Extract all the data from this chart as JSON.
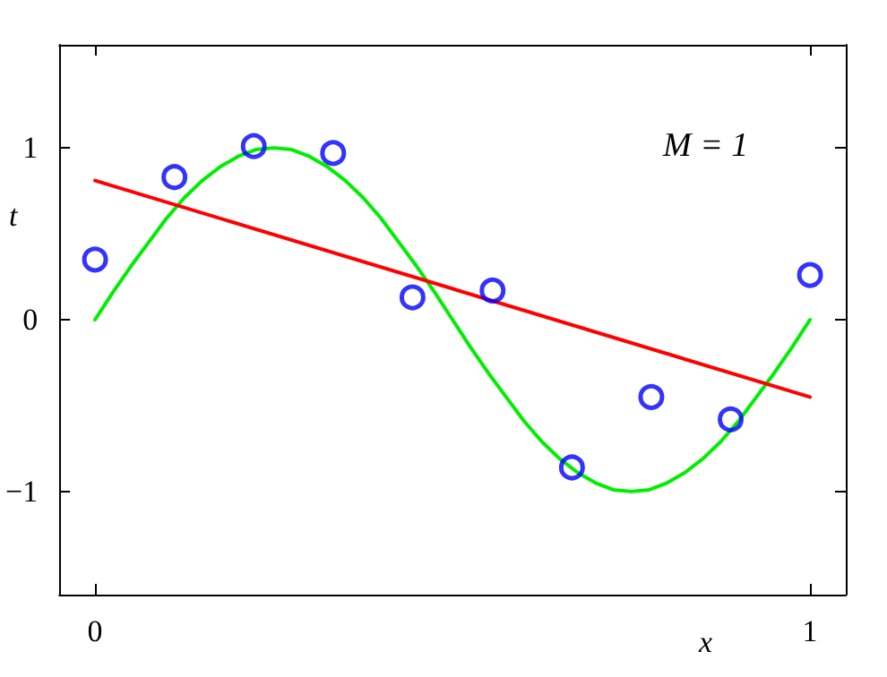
{
  "chart_data": {
    "type": "scatter",
    "xlabel": "x",
    "ylabel": "t",
    "annotations": [
      "M = 1"
    ],
    "xlim": [
      -0.05,
      1.05
    ],
    "ylim": [
      -1.6,
      1.6
    ],
    "xticks": [
      0,
      1
    ],
    "yticks": [
      {
        "value": -1,
        "label": "−1"
      },
      0,
      1
    ],
    "grid": false,
    "series": [
      {
        "type": "line",
        "color": "#00ee00",
        "marker": "none",
        "line_style": "solid",
        "x": [
          0,
          0.025,
          0.05,
          0.075,
          0.1,
          0.125,
          0.15,
          0.175,
          0.2,
          0.225,
          0.25,
          0.275,
          0.3,
          0.325,
          0.35,
          0.375,
          0.4,
          0.425,
          0.45,
          0.475,
          0.5,
          0.525,
          0.55,
          0.575,
          0.6,
          0.625,
          0.65,
          0.675,
          0.7,
          0.725,
          0.75,
          0.775,
          0.8,
          0.825,
          0.85,
          0.875,
          0.9,
          0.925,
          0.95,
          0.975,
          1
        ],
        "values": [
          0,
          0.16,
          0.31,
          0.45,
          0.59,
          0.71,
          0.81,
          0.89,
          0.95,
          0.99,
          1,
          0.99,
          0.95,
          0.89,
          0.81,
          0.71,
          0.59,
          0.45,
          0.31,
          0.16,
          0,
          -0.16,
          -0.31,
          -0.45,
          -0.59,
          -0.71,
          -0.81,
          -0.89,
          -0.95,
          -0.99,
          -1,
          -0.99,
          -0.95,
          -0.89,
          -0.81,
          -0.71,
          -0.59,
          -0.45,
          -0.31,
          -0.16,
          0
        ]
      },
      {
        "type": "line",
        "color": "#ff0000",
        "marker": "none",
        "line_style": "solid",
        "x": [
          0,
          1
        ],
        "values": [
          0.81,
          -0.45
        ]
      },
      {
        "color": "#0000ff",
        "marker": "circle",
        "x": [
          0,
          0.111,
          0.222,
          0.333,
          0.444,
          0.556,
          0.667,
          0.778,
          0.889,
          1
        ],
        "values": [
          0.35,
          0.83,
          1.01,
          0.97,
          0.13,
          0.17,
          -0.86,
          -0.45,
          -0.58,
          0.26
        ]
      }
    ]
  }
}
